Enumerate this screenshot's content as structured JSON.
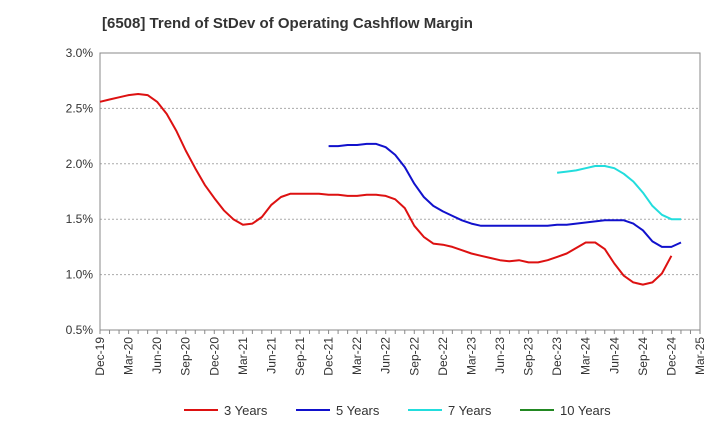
{
  "chart_data": {
    "type": "line",
    "title": "[6508]  Trend of StDev of Operating Cashflow Margin",
    "xlabel": "",
    "ylabel": "",
    "y_ticks": [
      "0.5%",
      "1.0%",
      "1.5%",
      "2.0%",
      "2.5%",
      "3.0%"
    ],
    "ylim": [
      0.5,
      3.0
    ],
    "x_ticks": [
      "Dec-19",
      "Mar-20",
      "Jun-20",
      "Sep-20",
      "Dec-20",
      "Mar-21",
      "Jun-21",
      "Sep-21",
      "Dec-21",
      "Mar-22",
      "Jun-22",
      "Sep-22",
      "Dec-22",
      "Mar-23",
      "Jun-23",
      "Sep-23",
      "Dec-23",
      "Mar-24",
      "Jun-24",
      "Sep-24",
      "Dec-24",
      "Mar-25"
    ],
    "x_axis_unit": "month",
    "grid": "horizontal dashed",
    "legend_position": "bottom",
    "series": [
      {
        "name": "3 Years",
        "color": "#dd1111",
        "points": [
          [
            "Dec-19",
            2.56
          ],
          [
            "Jan-20",
            2.58
          ],
          [
            "Feb-20",
            2.6
          ],
          [
            "Mar-20",
            2.62
          ],
          [
            "Apr-20",
            2.63
          ],
          [
            "May-20",
            2.62
          ],
          [
            "Jun-20",
            2.56
          ],
          [
            "Jul-20",
            2.45
          ],
          [
            "Aug-20",
            2.3
          ],
          [
            "Sep-20",
            2.12
          ],
          [
            "Oct-20",
            1.96
          ],
          [
            "Nov-20",
            1.81
          ],
          [
            "Dec-20",
            1.69
          ],
          [
            "Jan-21",
            1.58
          ],
          [
            "Feb-21",
            1.5
          ],
          [
            "Mar-21",
            1.45
          ],
          [
            "Apr-21",
            1.46
          ],
          [
            "May-21",
            1.52
          ],
          [
            "Jun-21",
            1.63
          ],
          [
            "Jul-21",
            1.7
          ],
          [
            "Aug-21",
            1.73
          ],
          [
            "Sep-21",
            1.73
          ],
          [
            "Oct-21",
            1.73
          ],
          [
            "Nov-21",
            1.73
          ],
          [
            "Dec-21",
            1.72
          ],
          [
            "Jan-22",
            1.72
          ],
          [
            "Feb-22",
            1.71
          ],
          [
            "Mar-22",
            1.71
          ],
          [
            "Apr-22",
            1.72
          ],
          [
            "May-22",
            1.72
          ],
          [
            "Jun-22",
            1.71
          ],
          [
            "Jul-22",
            1.68
          ],
          [
            "Aug-22",
            1.6
          ],
          [
            "Sep-22",
            1.44
          ],
          [
            "Oct-22",
            1.34
          ],
          [
            "Nov-22",
            1.28
          ],
          [
            "Dec-22",
            1.27
          ],
          [
            "Jan-23",
            1.25
          ],
          [
            "Feb-23",
            1.22
          ],
          [
            "Mar-23",
            1.19
          ],
          [
            "Apr-23",
            1.17
          ],
          [
            "May-23",
            1.15
          ],
          [
            "Jun-23",
            1.13
          ],
          [
            "Jul-23",
            1.12
          ],
          [
            "Aug-23",
            1.13
          ],
          [
            "Sep-23",
            1.11
          ],
          [
            "Oct-23",
            1.11
          ],
          [
            "Nov-23",
            1.13
          ],
          [
            "Dec-23",
            1.16
          ],
          [
            "Jan-24",
            1.19
          ],
          [
            "Feb-24",
            1.24
          ],
          [
            "Mar-24",
            1.29
          ],
          [
            "Apr-24",
            1.29
          ],
          [
            "May-24",
            1.23
          ],
          [
            "Jun-24",
            1.1
          ],
          [
            "Jul-24",
            0.99
          ],
          [
            "Aug-24",
            0.93
          ],
          [
            "Sep-24",
            0.91
          ],
          [
            "Oct-24",
            0.93
          ],
          [
            "Nov-24",
            1.01
          ],
          [
            "Dec-24",
            1.17
          ]
        ]
      },
      {
        "name": "5 Years",
        "color": "#1111cc",
        "points": [
          [
            "Dec-21",
            2.16
          ],
          [
            "Jan-22",
            2.16
          ],
          [
            "Feb-22",
            2.17
          ],
          [
            "Mar-22",
            2.17
          ],
          [
            "Apr-22",
            2.18
          ],
          [
            "May-22",
            2.18
          ],
          [
            "Jun-22",
            2.15
          ],
          [
            "Jul-22",
            2.08
          ],
          [
            "Aug-22",
            1.97
          ],
          [
            "Sep-22",
            1.82
          ],
          [
            "Oct-22",
            1.7
          ],
          [
            "Nov-22",
            1.62
          ],
          [
            "Dec-22",
            1.57
          ],
          [
            "Jan-23",
            1.53
          ],
          [
            "Feb-23",
            1.49
          ],
          [
            "Mar-23",
            1.46
          ],
          [
            "Apr-23",
            1.44
          ],
          [
            "May-23",
            1.44
          ],
          [
            "Jun-23",
            1.44
          ],
          [
            "Jul-23",
            1.44
          ],
          [
            "Aug-23",
            1.44
          ],
          [
            "Sep-23",
            1.44
          ],
          [
            "Oct-23",
            1.44
          ],
          [
            "Nov-23",
            1.44
          ],
          [
            "Dec-23",
            1.45
          ],
          [
            "Jan-24",
            1.45
          ],
          [
            "Feb-24",
            1.46
          ],
          [
            "Mar-24",
            1.47
          ],
          [
            "Apr-24",
            1.48
          ],
          [
            "May-24",
            1.49
          ],
          [
            "Jun-24",
            1.49
          ],
          [
            "Jul-24",
            1.49
          ],
          [
            "Aug-24",
            1.46
          ],
          [
            "Sep-24",
            1.4
          ],
          [
            "Oct-24",
            1.3
          ],
          [
            "Nov-24",
            1.25
          ],
          [
            "Dec-24",
            1.25
          ],
          [
            "Jan-25",
            1.29
          ]
        ]
      },
      {
        "name": "7 Years",
        "color": "#22dddd",
        "points": [
          [
            "Dec-23",
            1.92
          ],
          [
            "Jan-24",
            1.93
          ],
          [
            "Feb-24",
            1.94
          ],
          [
            "Mar-24",
            1.96
          ],
          [
            "Apr-24",
            1.98
          ],
          [
            "May-24",
            1.98
          ],
          [
            "Jun-24",
            1.96
          ],
          [
            "Jul-24",
            1.91
          ],
          [
            "Aug-24",
            1.84
          ],
          [
            "Sep-24",
            1.74
          ],
          [
            "Oct-24",
            1.62
          ],
          [
            "Nov-24",
            1.54
          ],
          [
            "Dec-24",
            1.5
          ],
          [
            "Jan-25",
            1.5
          ]
        ]
      },
      {
        "name": "10 Years",
        "color": "#228822",
        "points": []
      }
    ]
  }
}
